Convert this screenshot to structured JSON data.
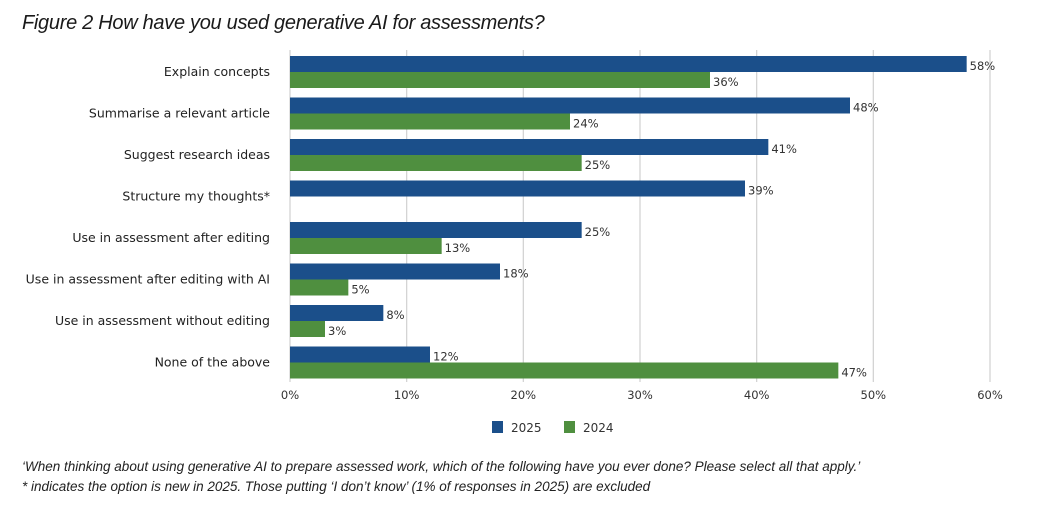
{
  "chart_data": {
    "type": "bar",
    "orientation": "horizontal",
    "title": "Figure 2 How have you used generative AI for assessments?",
    "categories": [
      "Explain concepts",
      "Summarise a relevant article",
      "Suggest research ideas",
      "Structure my thoughts*",
      "Use in assessment after editing",
      "Use in assessment after editing with AI",
      "Use in assessment without editing",
      "None of the above"
    ],
    "series": [
      {
        "name": "2025",
        "color": "#1b4f8a",
        "values": [
          58,
          48,
          41,
          39,
          25,
          18,
          8,
          12
        ]
      },
      {
        "name": "2024",
        "color": "#4f8f3f",
        "values": [
          36,
          24,
          25,
          null,
          13,
          5,
          3,
          47
        ]
      }
    ],
    "value_suffix": "%",
    "xlim": [
      0,
      60
    ],
    "xticks": [
      "0%",
      "10%",
      "20%",
      "30%",
      "40%",
      "50%",
      "60%"
    ],
    "xtick_values": [
      0,
      10,
      20,
      30,
      40,
      50,
      60
    ],
    "grid": true,
    "legend": [
      "2025",
      "2024"
    ],
    "legend_position": "bottom"
  },
  "notes": {
    "line1": "‘When thinking about using generative AI to prepare assessed work, which of the following have you ever done? Please select all that apply.’",
    "line2": "* indicates the option is new in 2025. Those putting ‘I don’t know’ (1% of responses in 2025) are excluded"
  }
}
